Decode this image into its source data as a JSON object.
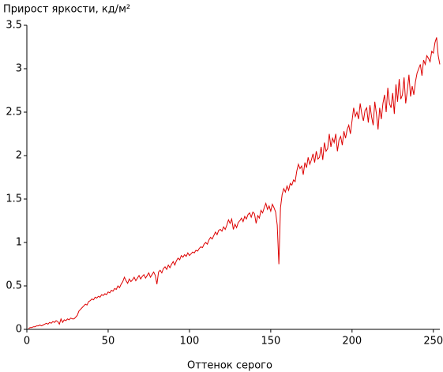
{
  "chart_data": {
    "type": "line",
    "title": "Прирост яркости, кд/м²",
    "x_label": "Оттенок серого",
    "xlim": [
      0,
      254
    ],
    "xticks": [
      0,
      50,
      100,
      150,
      200,
      250
    ],
    "ylim": [
      0,
      3.5
    ],
    "yticks": [
      0,
      0.5,
      1,
      1.5,
      2,
      2.5,
      3,
      3.5
    ],
    "grid": false,
    "x": [
      1,
      2,
      3,
      4,
      5,
      6,
      7,
      8,
      9,
      10,
      11,
      12,
      13,
      14,
      15,
      16,
      17,
      18,
      19,
      20,
      21,
      22,
      23,
      24,
      25,
      26,
      27,
      28,
      29,
      30,
      31,
      32,
      33,
      34,
      35,
      36,
      37,
      38,
      39,
      40,
      41,
      42,
      43,
      44,
      45,
      46,
      47,
      48,
      49,
      50,
      51,
      52,
      53,
      54,
      55,
      56,
      57,
      58,
      59,
      60,
      61,
      62,
      63,
      64,
      65,
      66,
      67,
      68,
      69,
      70,
      71,
      72,
      73,
      74,
      75,
      76,
      77,
      78,
      79,
      80,
      81,
      82,
      83,
      84,
      85,
      86,
      87,
      88,
      89,
      90,
      91,
      92,
      93,
      94,
      95,
      96,
      97,
      98,
      99,
      100,
      101,
      102,
      103,
      104,
      105,
      106,
      107,
      108,
      109,
      110,
      111,
      112,
      113,
      114,
      115,
      116,
      117,
      118,
      119,
      120,
      121,
      122,
      123,
      124,
      125,
      126,
      127,
      128,
      129,
      130,
      131,
      132,
      133,
      134,
      135,
      136,
      137,
      138,
      139,
      140,
      141,
      142,
      143,
      144,
      145,
      146,
      147,
      148,
      149,
      150,
      151,
      152,
      153,
      154,
      155,
      156,
      157,
      158,
      159,
      160,
      161,
      162,
      163,
      164,
      165,
      166,
      167,
      168,
      169,
      170,
      171,
      172,
      173,
      174,
      175,
      176,
      177,
      178,
      179,
      180,
      181,
      182,
      183,
      184,
      185,
      186,
      187,
      188,
      189,
      190,
      191,
      192,
      193,
      194,
      195,
      196,
      197,
      198,
      199,
      200,
      201,
      202,
      203,
      204,
      205,
      206,
      207,
      208,
      209,
      210,
      211,
      212,
      213,
      214,
      215,
      216,
      217,
      218,
      219,
      220,
      221,
      222,
      223,
      224,
      225,
      226,
      227,
      228,
      229,
      230,
      231,
      232,
      233,
      234,
      235,
      236,
      237,
      238,
      239,
      240,
      241,
      242,
      243,
      244,
      245,
      246,
      247,
      248,
      249,
      250,
      251,
      252,
      253,
      254
    ],
    "series": [
      {
        "color": "#dd0000",
        "values": [
          0.01,
          0.02,
          0.02,
          0.03,
          0.03,
          0.04,
          0.04,
          0.05,
          0.04,
          0.05,
          0.06,
          0.07,
          0.06,
          0.08,
          0.07,
          0.09,
          0.08,
          0.1,
          0.09,
          0.06,
          0.12,
          0.08,
          0.11,
          0.1,
          0.12,
          0.11,
          0.13,
          0.12,
          0.12,
          0.14,
          0.16,
          0.21,
          0.23,
          0.25,
          0.27,
          0.29,
          0.28,
          0.32,
          0.33,
          0.35,
          0.34,
          0.37,
          0.36,
          0.38,
          0.37,
          0.4,
          0.39,
          0.41,
          0.4,
          0.43,
          0.42,
          0.45,
          0.44,
          0.47,
          0.46,
          0.5,
          0.48,
          0.52,
          0.55,
          0.6,
          0.56,
          0.53,
          0.58,
          0.55,
          0.57,
          0.6,
          0.56,
          0.59,
          0.62,
          0.58,
          0.61,
          0.63,
          0.59,
          0.62,
          0.65,
          0.6,
          0.63,
          0.66,
          0.62,
          0.52,
          0.66,
          0.68,
          0.65,
          0.7,
          0.72,
          0.69,
          0.74,
          0.71,
          0.75,
          0.78,
          0.74,
          0.79,
          0.82,
          0.8,
          0.85,
          0.83,
          0.86,
          0.84,
          0.88,
          0.85,
          0.87,
          0.89,
          0.88,
          0.91,
          0.9,
          0.93,
          0.95,
          0.94,
          0.98,
          1.0,
          0.98,
          1.03,
          1.06,
          1.04,
          1.08,
          1.12,
          1.09,
          1.14,
          1.15,
          1.13,
          1.18,
          1.15,
          1.2,
          1.26,
          1.22,
          1.27,
          1.15,
          1.21,
          1.17,
          1.23,
          1.25,
          1.28,
          1.24,
          1.3,
          1.27,
          1.32,
          1.34,
          1.29,
          1.35,
          1.33,
          1.22,
          1.31,
          1.28,
          1.37,
          1.34,
          1.4,
          1.45,
          1.38,
          1.42,
          1.36,
          1.44,
          1.4,
          1.35,
          1.2,
          0.75,
          1.4,
          1.55,
          1.62,
          1.58,
          1.65,
          1.6,
          1.68,
          1.66,
          1.72,
          1.7,
          1.82,
          1.9,
          1.85,
          1.88,
          1.78,
          1.92,
          1.86,
          1.98,
          1.9,
          1.95,
          2.02,
          1.92,
          2.05,
          1.96,
          1.98,
          2.1,
          1.95,
          2.15,
          2.05,
          2.08,
          2.25,
          2.1,
          2.2,
          2.15,
          2.25,
          2.05,
          2.18,
          2.22,
          2.12,
          2.28,
          2.2,
          2.3,
          2.35,
          2.25,
          2.4,
          2.55,
          2.45,
          2.5,
          2.42,
          2.6,
          2.48,
          2.4,
          2.52,
          2.55,
          2.38,
          2.58,
          2.45,
          2.35,
          2.62,
          2.48,
          2.3,
          2.55,
          2.42,
          2.6,
          2.7,
          2.5,
          2.78,
          2.6,
          2.55,
          2.72,
          2.48,
          2.82,
          2.62,
          2.88,
          2.65,
          2.7,
          2.9,
          2.6,
          2.75,
          2.93,
          2.68,
          2.8,
          2.7,
          2.85,
          2.95,
          3.0,
          3.05,
          2.92,
          3.1,
          3.05,
          3.15,
          3.12,
          3.08,
          3.2,
          3.18,
          3.3,
          3.36,
          3.15,
          3.05
        ]
      }
    ]
  }
}
